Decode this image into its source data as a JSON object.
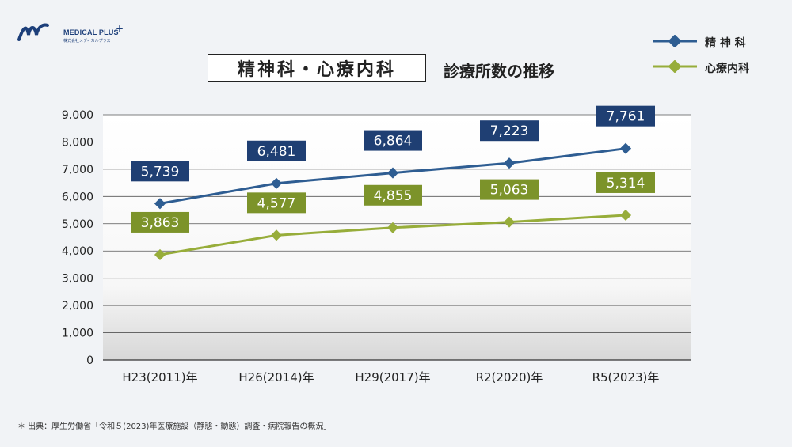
{
  "brand": {
    "name": "MEDICAL PLUS",
    "sub": "株式会社メディカルプラス"
  },
  "title_main": "精神科・心療内科",
  "title_sub": "診療所数の推移",
  "source_note": "＊ 出典：厚生労働省「令和５(2023)年医療施設（静態・動態）調査・病院報告の概況」",
  "colors": {
    "series1": "#2e5d92",
    "series1_label_bg": "#1f3f73",
    "series2": "#97ad3a",
    "series2_label_bg": "#7c932a"
  },
  "chart_data": {
    "type": "line",
    "title": "精神科・心療内科 診療所数の推移",
    "categories": [
      "H23(2011)年",
      "H26(2014)年",
      "H29(2017)年",
      "R2(2020)年",
      "R5(2023)年"
    ],
    "ylim": [
      0,
      9000
    ],
    "yticks": [
      0,
      1000,
      2000,
      3000,
      4000,
      5000,
      6000,
      7000,
      8000,
      9000
    ],
    "ytick_labels": [
      "0",
      "1,000",
      "2,000",
      "3,000",
      "4,000",
      "5,000",
      "6,000",
      "7,000",
      "8,000",
      "9,000"
    ],
    "grid": true,
    "legend_position": "top-right",
    "series": [
      {
        "name": "精 神 科",
        "values": [
          5739,
          6481,
          6864,
          7223,
          7761
        ],
        "labels": [
          "5,739",
          "6,481",
          "6,864",
          "7,223",
          "7,761"
        ]
      },
      {
        "name": "心療内科",
        "values": [
          3863,
          4577,
          4855,
          5063,
          5314
        ],
        "labels": [
          "3,863",
          "4,577",
          "4,855",
          "5,063",
          "5,314"
        ]
      }
    ]
  }
}
